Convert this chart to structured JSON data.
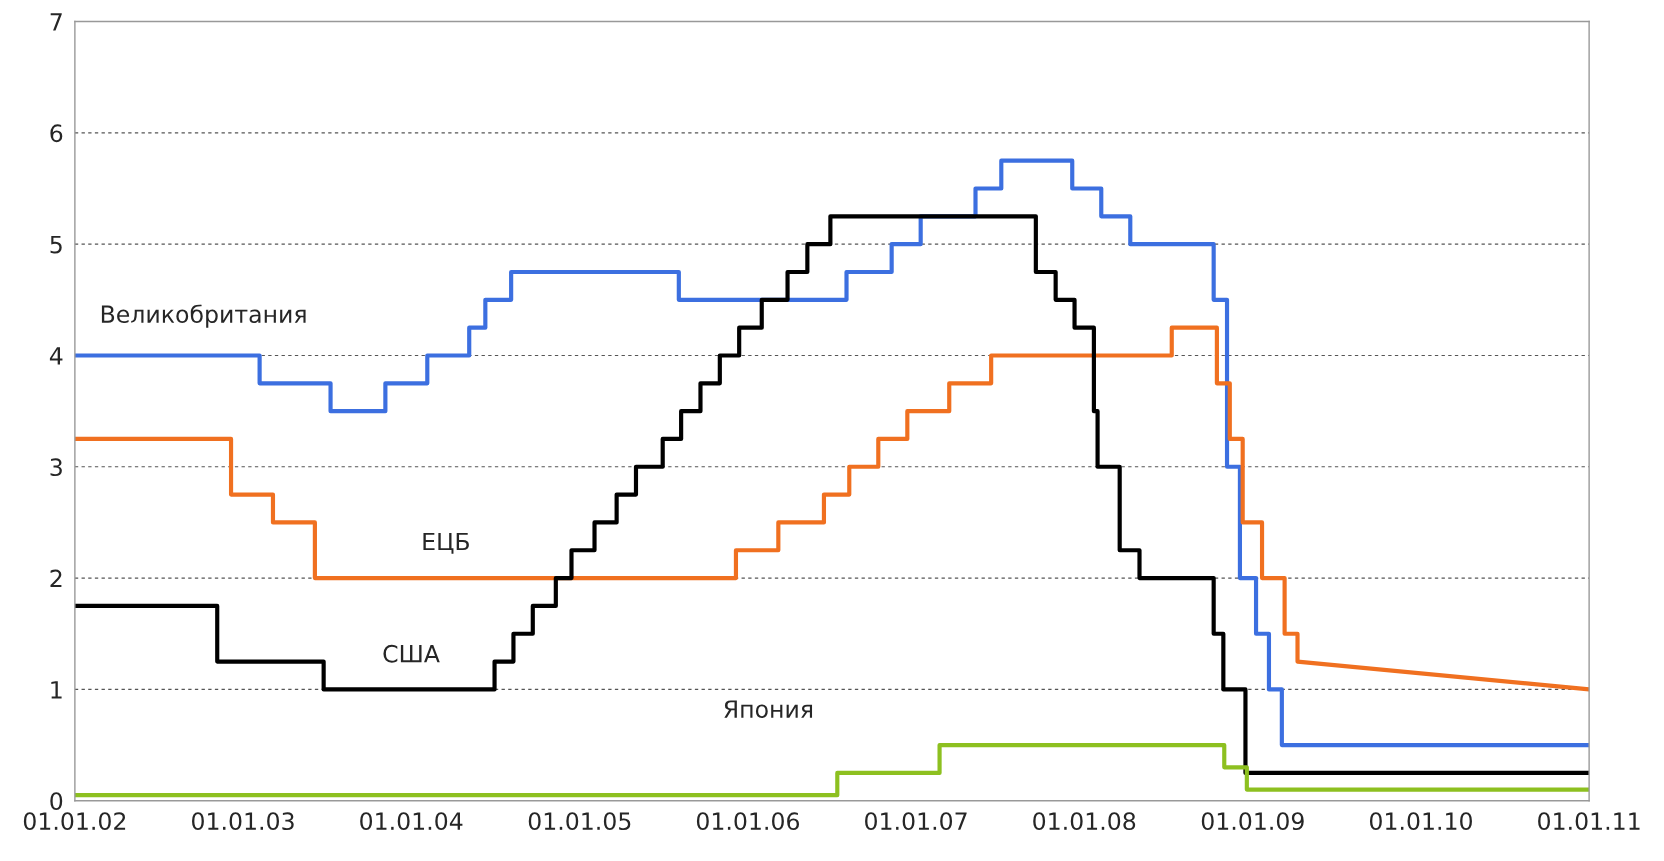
{
  "chart_data": {
    "type": "line",
    "xlim": [
      "2002-01-01",
      "2011-01-01"
    ],
    "ylim": [
      0,
      7
    ],
    "yticks": [
      0,
      1,
      2,
      3,
      4,
      5,
      6,
      7
    ],
    "xticks": [
      {
        "value": "2002-01-01",
        "label": "01.01.02"
      },
      {
        "value": "2003-01-01",
        "label": "01.01.03"
      },
      {
        "value": "2004-01-01",
        "label": "01.01.04"
      },
      {
        "value": "2005-01-01",
        "label": "01.01.05"
      },
      {
        "value": "2006-01-01",
        "label": "01.01.06"
      },
      {
        "value": "2007-01-01",
        "label": "01.01.07"
      },
      {
        "value": "2008-01-01",
        "label": "01.01.08"
      },
      {
        "value": "2009-01-01",
        "label": "01.01.09"
      },
      {
        "value": "2010-01-01",
        "label": "01.01.10"
      },
      {
        "value": "2011-01-01",
        "label": "01.01.11"
      }
    ],
    "grid": "y",
    "legend": false,
    "marker": "none",
    "line_style": "solid",
    "series": [
      {
        "name": "Великобритания",
        "color": "#3c6fe0",
        "x": [
          "2002-01-01",
          "2003-02-06",
          "2003-02-06",
          "2003-07-10",
          "2003-07-10",
          "2003-11-06",
          "2003-11-06",
          "2004-02-05",
          "2004-02-05",
          "2004-05-06",
          "2004-05-06",
          "2004-06-10",
          "2004-06-10",
          "2004-08-05",
          "2004-08-05",
          "2005-08-04",
          "2005-08-04",
          "2006-08-03",
          "2006-08-03",
          "2006-11-09",
          "2006-11-09",
          "2007-01-11",
          "2007-01-11",
          "2007-05-10",
          "2007-05-10",
          "2007-07-05",
          "2007-07-05",
          "2007-12-06",
          "2007-12-06",
          "2008-02-07",
          "2008-02-07",
          "2008-04-10",
          "2008-04-10",
          "2008-10-08",
          "2008-10-08",
          "2008-11-06",
          "2008-11-06",
          "2008-12-04",
          "2008-12-04",
          "2009-01-08",
          "2009-01-08",
          "2009-02-05",
          "2009-02-05",
          "2009-03-05",
          "2009-03-05",
          "2011-01-01"
        ],
        "values": [
          4,
          4,
          3.75,
          3.75,
          3.5,
          3.5,
          3.75,
          3.75,
          4,
          4,
          4.25,
          4.25,
          4.5,
          4.5,
          4.75,
          4.75,
          4.5,
          4.5,
          4.75,
          4.75,
          5,
          5,
          5.25,
          5.25,
          5.5,
          5.5,
          5.75,
          5.75,
          5.5,
          5.5,
          5.25,
          5.25,
          5,
          5,
          4.5,
          4.5,
          3,
          3,
          2,
          2,
          1.5,
          1.5,
          1,
          1,
          0.5,
          0.5
        ]
      },
      {
        "name": "ЕЦБ",
        "color": "#f07020",
        "x": [
          "2002-01-01",
          "2002-12-06",
          "2002-12-06",
          "2003-03-07",
          "2003-03-07",
          "2003-06-06",
          "2003-06-06",
          "2005-12-06",
          "2005-12-06",
          "2006-03-08",
          "2006-03-08",
          "2006-06-15",
          "2006-06-15",
          "2006-08-09",
          "2006-08-09",
          "2006-10-11",
          "2006-10-11",
          "2006-12-13",
          "2006-12-13",
          "2007-03-14",
          "2007-03-14",
          "2007-06-13",
          "2007-06-13",
          "2008-07-09",
          "2008-07-09",
          "2008-10-15",
          "2008-10-15",
          "2008-11-12",
          "2008-11-12",
          "2008-12-10",
          "2008-12-10",
          "2009-01-21",
          "2009-01-21",
          "2009-03-11",
          "2009-03-11",
          "2009-04-08",
          "2009-04-08",
          "2011-01-01"
        ],
        "values": [
          3.25,
          3.25,
          2.75,
          2.75,
          2.5,
          2.5,
          2,
          2,
          2.25,
          2.25,
          2.5,
          2.5,
          2.75,
          2.75,
          3,
          3,
          3.25,
          3.25,
          3.5,
          3.5,
          3.75,
          3.75,
          4,
          4,
          4.25,
          4.25,
          3.75,
          3.75,
          3.25,
          3.25,
          2.5,
          2.5,
          2,
          2,
          1.5,
          1.5,
          1.25,
          1
        ]
      },
      {
        "name": "США",
        "color": "#000000",
        "x": [
          "2002-01-01",
          "2002-11-06",
          "2002-11-06",
          "2003-06-25",
          "2003-06-25",
          "2004-06-30",
          "2004-06-30",
          "2004-08-10",
          "2004-08-10",
          "2004-09-21",
          "2004-09-21",
          "2004-11-10",
          "2004-11-10",
          "2004-12-14",
          "2004-12-14",
          "2005-02-02",
          "2005-02-02",
          "2005-03-22",
          "2005-03-22",
          "2005-05-03",
          "2005-05-03",
          "2005-06-30",
          "2005-06-30",
          "2005-08-09",
          "2005-08-09",
          "2005-09-20",
          "2005-09-20",
          "2005-11-01",
          "2005-11-01",
          "2005-12-13",
          "2005-12-13",
          "2006-01-31",
          "2006-01-31",
          "2006-03-28",
          "2006-03-28",
          "2006-05-10",
          "2006-05-10",
          "2006-06-29",
          "2006-06-29",
          "2007-09-18",
          "2007-09-18",
          "2007-10-31",
          "2007-10-31",
          "2007-12-11",
          "2007-12-11",
          "2008-01-22",
          "2008-01-22",
          "2008-01-30",
          "2008-01-30",
          "2008-03-18",
          "2008-03-18",
          "2008-04-30",
          "2008-04-30",
          "2008-10-08",
          "2008-10-08",
          "2008-10-29",
          "2008-10-29",
          "2008-12-16",
          "2008-12-16",
          "2011-01-01"
        ],
        "values": [
          1.75,
          1.75,
          1.25,
          1.25,
          1,
          1,
          1.25,
          1.25,
          1.5,
          1.5,
          1.75,
          1.75,
          2,
          2,
          2.25,
          2.25,
          2.5,
          2.5,
          2.75,
          2.75,
          3,
          3,
          3.25,
          3.25,
          3.5,
          3.5,
          3.75,
          3.75,
          4,
          4,
          4.25,
          4.25,
          4.5,
          4.5,
          4.75,
          4.75,
          5,
          5,
          5.25,
          5.25,
          4.75,
          4.75,
          4.5,
          4.5,
          4.25,
          4.25,
          3.5,
          3.5,
          3,
          3,
          2.25,
          2.25,
          2,
          2,
          1.5,
          1.5,
          1,
          1,
          0.25,
          0.25
        ]
      },
      {
        "name": "Япония",
        "color": "#8dc020",
        "x": [
          "2002-01-01",
          "2006-07-14",
          "2006-07-14",
          "2007-02-21",
          "2007-02-21",
          "2008-10-31",
          "2008-10-31",
          "2008-12-19",
          "2008-12-19",
          "2011-01-01"
        ],
        "values": [
          0.05,
          0.05,
          0.25,
          0.25,
          0.5,
          0.5,
          0.3,
          0.3,
          0.1,
          0.1
        ]
      }
    ]
  }
}
